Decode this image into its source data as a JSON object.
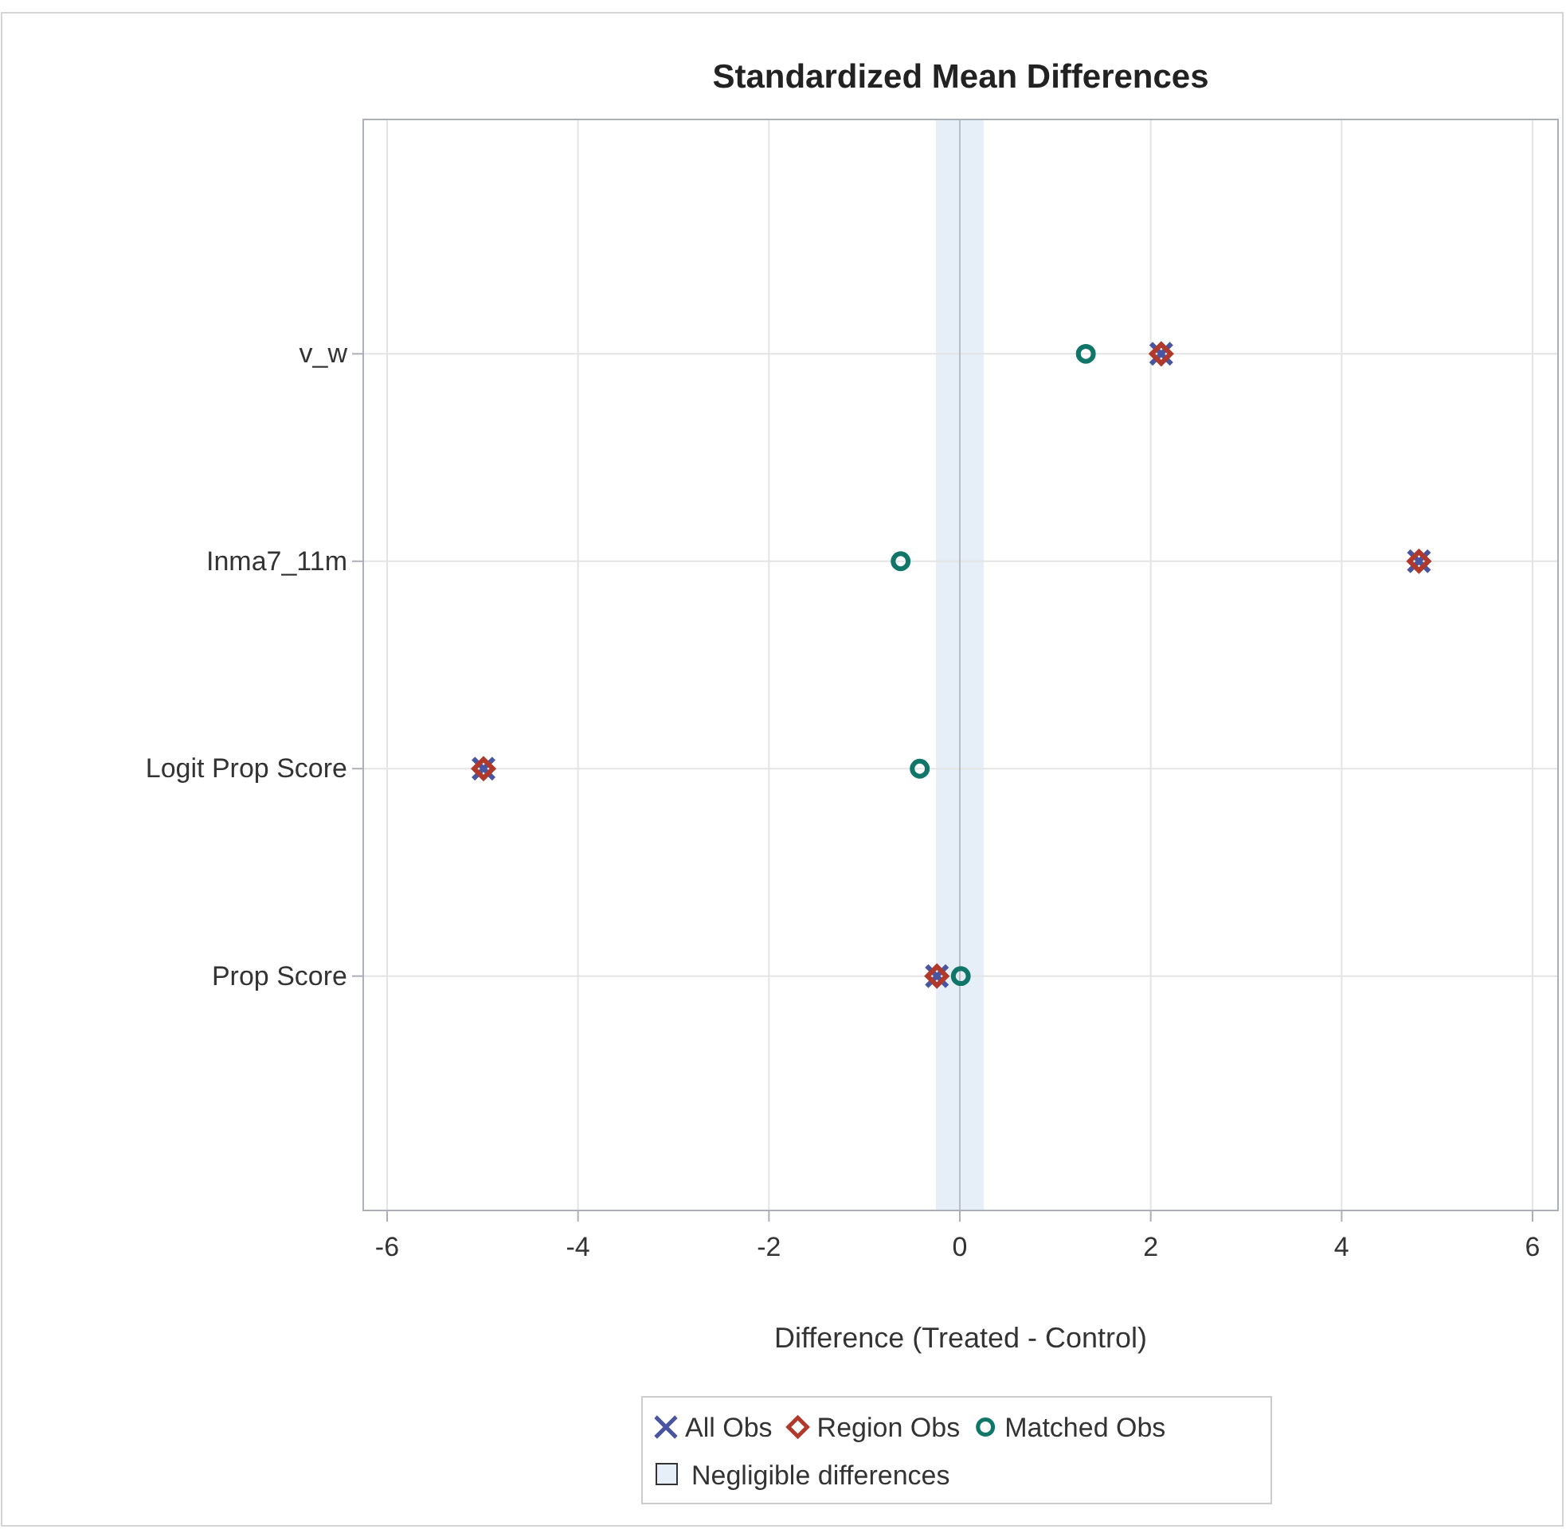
{
  "chart_data": {
    "type": "scatter",
    "title": "Standardized Mean Differences",
    "xlabel": "Difference (Treated - Control)",
    "orientation": "horizontal",
    "categories": [
      "v_w",
      "Inma7_11m",
      "Logit Prop Score",
      "Prop Score"
    ],
    "xlim": [
      -6.05,
      6.05
    ],
    "xticks": [
      -6,
      -4,
      -2,
      0,
      2,
      4,
      6
    ],
    "grid": true,
    "legend": "bottom",
    "series": [
      {
        "name": "All Obs",
        "color": "#4a55a2",
        "marker": "cross",
        "values": [
          2.11,
          4.81,
          -4.99,
          -0.24
        ]
      },
      {
        "name": "Region Obs",
        "color": "#b0392b",
        "marker": "diamond",
        "values": [
          2.11,
          4.81,
          -4.99,
          -0.24
        ]
      },
      {
        "name": "Matched Obs",
        "color": "#10766a",
        "marker": "circle",
        "values": [
          1.32,
          -0.62,
          -0.42,
          0.01
        ]
      }
    ],
    "bands": [
      {
        "axis": "x",
        "from": -0.25,
        "to": 0.25,
        "label": "Negligible differences",
        "color": "#e6eef8"
      }
    ],
    "ref_lines": [
      {
        "axis": "x",
        "value": 0,
        "color": "#b8bec8"
      }
    ]
  }
}
